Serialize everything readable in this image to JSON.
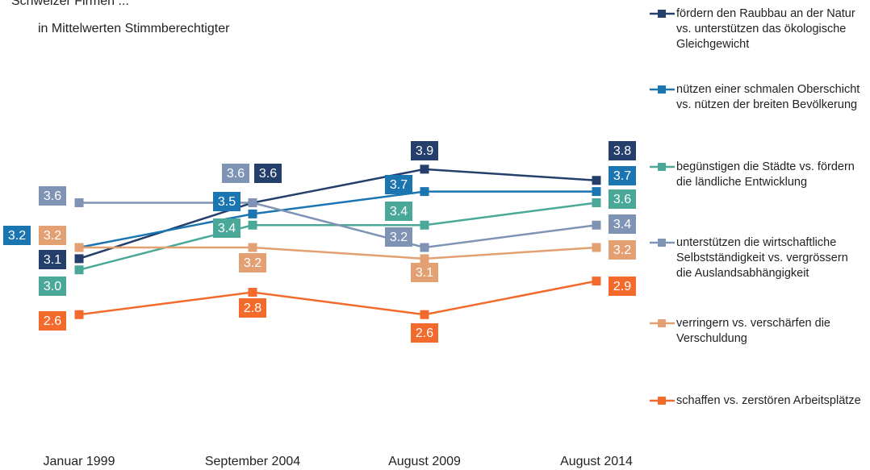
{
  "chart_data": {
    "type": "line",
    "title": "Schweizer Firmen ...",
    "subtitle": "in Mittelwerten Stimmberechtigter",
    "categories": [
      "Januar 1999",
      "September 2004",
      "August 2009",
      "August 2014"
    ],
    "ylim": [
      2.4,
      4.0
    ],
    "series": [
      {
        "name": "fördern den Raubbau an der Natur vs. unterstützen das ökologische Gleichgewicht",
        "color": "#243f6b",
        "values": [
          3.1,
          3.6,
          3.9,
          3.8
        ],
        "value_labels": [
          "3.1",
          "3.6",
          "3.9",
          "3.8"
        ]
      },
      {
        "name": "nützen einer schmalen Oberschicht vs. nützen der breiten Bevölkerung",
        "color": "#1a75b0",
        "values": [
          3.2,
          3.5,
          3.7,
          3.7
        ],
        "value_labels": [
          "3.2",
          "3.5",
          "3.7",
          "3.7"
        ]
      },
      {
        "name": "begünstigen die Städte vs. fördern die ländliche Entwicklung",
        "color": "#4aa898",
        "values": [
          3.0,
          3.4,
          3.4,
          3.6
        ],
        "value_labels": [
          "3.0",
          "3.4",
          "3.4",
          "3.6"
        ]
      },
      {
        "name": "unterstützen die wirtschaftliche Selbstständigkeit vs. vergrössern die Auslandsabhängigkeit",
        "color": "#7f93b5",
        "values": [
          3.6,
          3.6,
          3.2,
          3.4
        ],
        "value_labels": [
          "3.6",
          "3.6",
          "3.2",
          "3.4"
        ]
      },
      {
        "name": "verringern vs. verschärfen die Verschuldung",
        "color": "#e3a072",
        "values": [
          3.2,
          3.2,
          3.1,
          3.2
        ],
        "value_labels": [
          "3.2",
          "3.2",
          "3.1",
          "3.2"
        ]
      },
      {
        "name": "schaffen vs. zerstören Arbeitsplätze",
        "color": "#f26a2c",
        "values": [
          2.6,
          2.8,
          2.6,
          2.9
        ],
        "value_labels": [
          "2.6",
          "2.8",
          "2.6",
          "2.9"
        ]
      }
    ]
  }
}
